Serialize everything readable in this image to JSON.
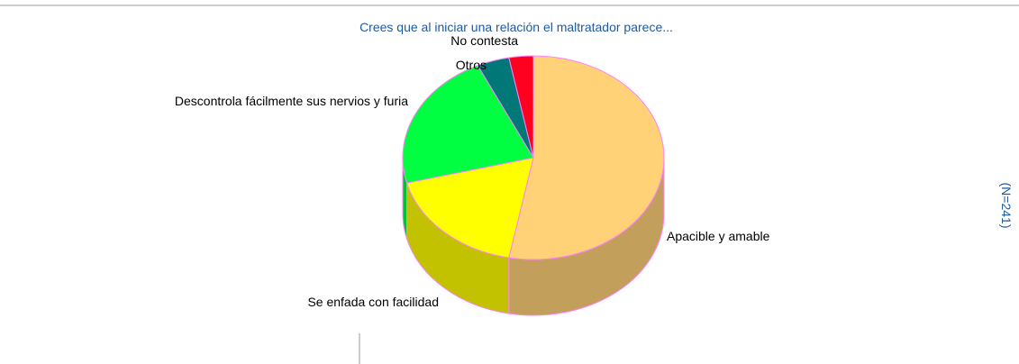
{
  "chart_data": {
    "type": "pie",
    "title": "Crees que al iniciar una relación el maltratador parece...",
    "annotation": "(N=241)",
    "categories": [
      "Apacible y amable",
      "Se enfada con facilidad",
      "Descontrola fácilmente sus nervios y furia",
      "Otros",
      "No contesta"
    ],
    "values": [
      53,
      18,
      22,
      4,
      3
    ],
    "colors": [
      "#ffd278",
      "#ffff00",
      "#00ff40",
      "#007878",
      "#ff0020"
    ],
    "edge_color": "#ff80ff"
  }
}
